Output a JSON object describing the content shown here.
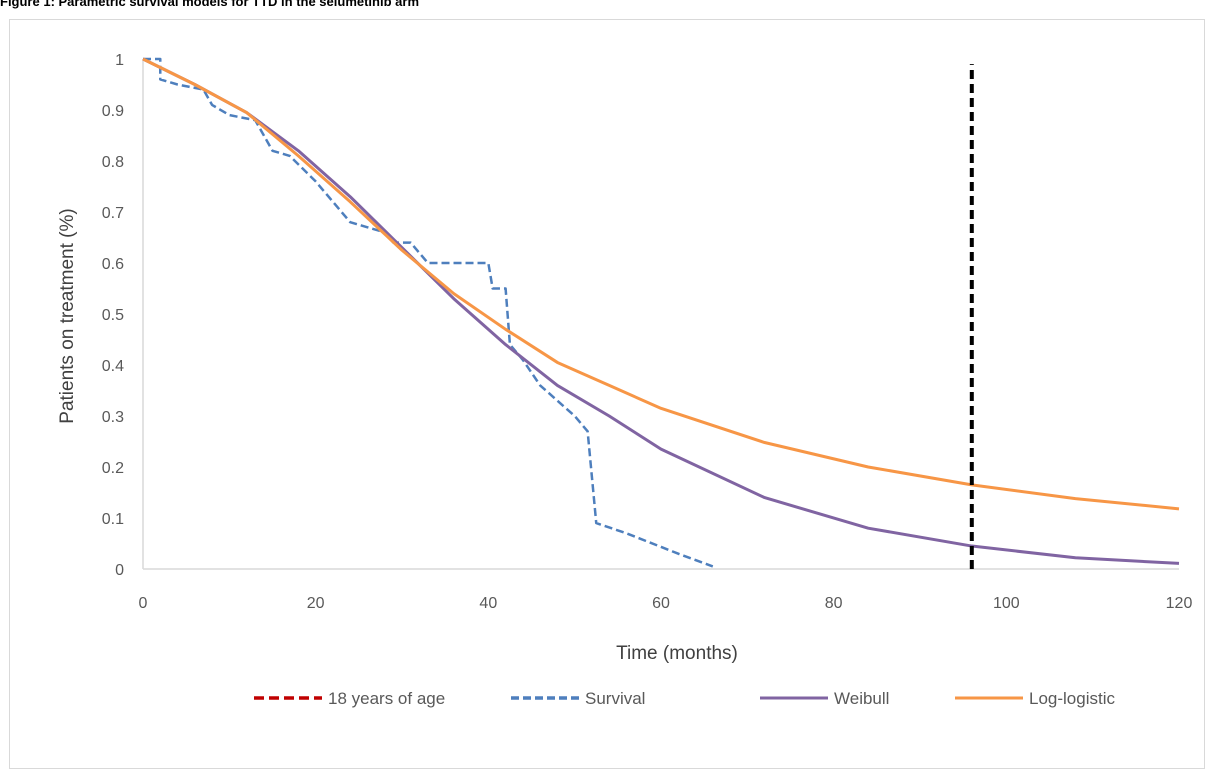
{
  "figure": {
    "caption": "Figure 1: Parametric survival models for TTD in the selumetinib arm"
  },
  "chart_data": {
    "type": "line",
    "title": "",
    "xlabel": "Time (months)",
    "ylabel": "Patients on treatment (%)",
    "xlim": [
      0,
      120
    ],
    "ylim": [
      0,
      1
    ],
    "x_ticks": [
      0,
      20,
      40,
      60,
      80,
      100,
      120
    ],
    "y_ticks": [
      0,
      0.1,
      0.2,
      0.3,
      0.4,
      0.5,
      0.6,
      0.7,
      0.8,
      0.9,
      1
    ],
    "x_tick_labels": [
      "0",
      "20",
      "40",
      "60",
      "80",
      "100",
      "120"
    ],
    "y_tick_labels": [
      "0",
      "0.1",
      "0.2",
      "0.3",
      "0.4",
      "0.5",
      "0.6",
      "0.7",
      "0.8",
      "0.9",
      "1"
    ],
    "grid": false,
    "legend_position": "bottom",
    "series": [
      {
        "name": "18 years of age",
        "style": "dashed",
        "color": "#c00000",
        "plot_color": "#000000",
        "width": 4,
        "dash": "9,5",
        "points": [
          [
            96,
            0
          ],
          [
            96,
            0.99
          ]
        ]
      },
      {
        "name": "Survival",
        "style": "dashed",
        "color": "#4e7fbd",
        "plot_color": "#4e7fbd",
        "width": 2.5,
        "dash": "8,4",
        "points": [
          [
            0,
            1
          ],
          [
            2,
            1
          ],
          [
            2,
            0.96
          ],
          [
            4,
            0.95
          ],
          [
            7,
            0.94
          ],
          [
            8,
            0.91
          ],
          [
            10,
            0.89
          ],
          [
            13,
            0.88
          ],
          [
            14,
            0.85
          ],
          [
            15,
            0.82
          ],
          [
            17,
            0.81
          ],
          [
            20,
            0.76
          ],
          [
            22,
            0.72
          ],
          [
            24,
            0.68
          ],
          [
            26,
            0.67
          ],
          [
            28,
            0.66
          ],
          [
            29,
            0.64
          ],
          [
            31,
            0.64
          ],
          [
            33,
            0.6
          ],
          [
            40,
            0.6
          ],
          [
            40.5,
            0.55
          ],
          [
            42,
            0.55
          ],
          [
            42.5,
            0.44
          ],
          [
            44,
            0.41
          ],
          [
            46,
            0.36
          ],
          [
            48,
            0.33
          ],
          [
            50,
            0.3
          ],
          [
            51.5,
            0.27
          ],
          [
            52.5,
            0.09
          ],
          [
            56,
            0.07
          ],
          [
            62,
            0.03
          ],
          [
            66,
            0.005
          ]
        ]
      },
      {
        "name": "Weibull",
        "style": "solid",
        "color": "#8064a2",
        "plot_color": "#8064a2",
        "width": 3,
        "dash": "",
        "points": [
          [
            0,
            1
          ],
          [
            6,
            0.95
          ],
          [
            12,
            0.895
          ],
          [
            18,
            0.82
          ],
          [
            24,
            0.73
          ],
          [
            30,
            0.63
          ],
          [
            36,
            0.53
          ],
          [
            42,
            0.44
          ],
          [
            48,
            0.36
          ],
          [
            54,
            0.3
          ],
          [
            60,
            0.235
          ],
          [
            72,
            0.14
          ],
          [
            84,
            0.08
          ],
          [
            96,
            0.045
          ],
          [
            108,
            0.022
          ],
          [
            120,
            0.011
          ]
        ]
      },
      {
        "name": "Log-logistic",
        "style": "solid",
        "color": "#f79646",
        "plot_color": "#f79646",
        "width": 3,
        "dash": "",
        "points": [
          [
            0,
            1
          ],
          [
            6,
            0.95
          ],
          [
            12,
            0.895
          ],
          [
            18,
            0.81
          ],
          [
            24,
            0.72
          ],
          [
            30,
            0.625
          ],
          [
            36,
            0.54
          ],
          [
            42,
            0.47
          ],
          [
            48,
            0.405
          ],
          [
            54,
            0.36
          ],
          [
            60,
            0.315
          ],
          [
            72,
            0.248
          ],
          [
            84,
            0.2
          ],
          [
            96,
            0.165
          ],
          [
            108,
            0.138
          ],
          [
            120,
            0.118
          ]
        ]
      }
    ]
  }
}
